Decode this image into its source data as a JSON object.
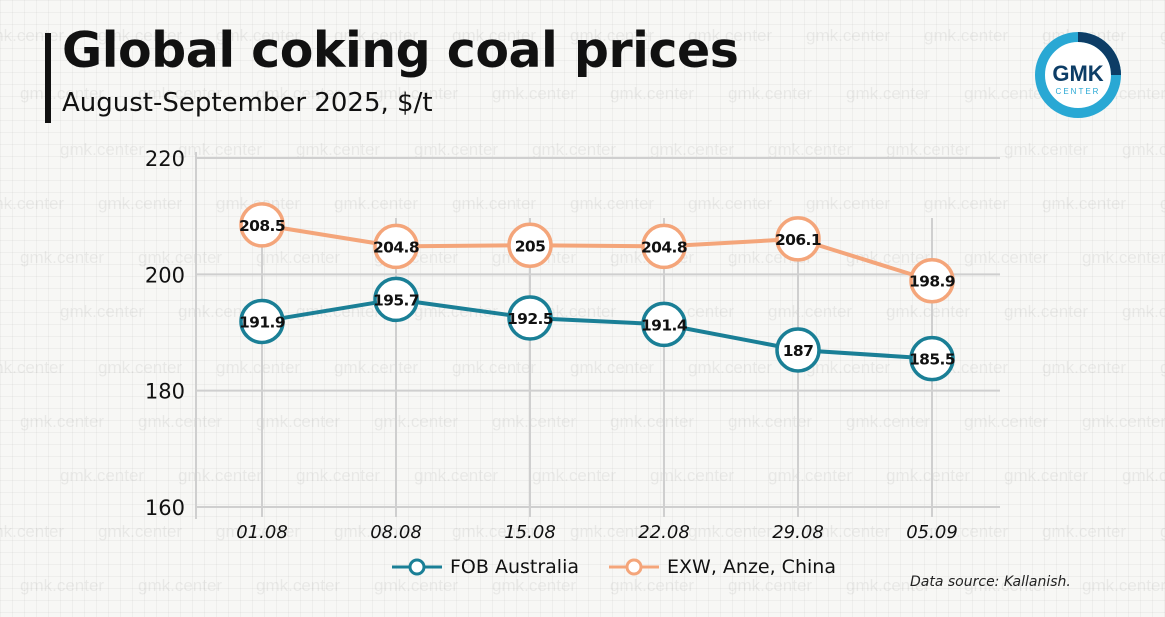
{
  "header": {
    "title": "Global coking coal prices",
    "subtitle": "August-September 2025, $/t"
  },
  "logo": {
    "line1": "GMK",
    "line2": "CENTER",
    "ring_color": "#29a8d4",
    "accent_color": "#0d3d66"
  },
  "watermark_text": "gmk.center",
  "source": "Data source: Kallanish.",
  "colors": {
    "fob": "#1a7f96",
    "exw": "#f4a57a",
    "grid": "#cfcfcf"
  },
  "chart_data": {
    "type": "line",
    "title": "Global coking coal prices",
    "subtitle": "August-September 2025, $/t",
    "xlabel": "",
    "ylabel": "$/t",
    "categories": [
      "01.08",
      "08.08",
      "15.08",
      "22.08",
      "29.08",
      "05.09"
    ],
    "ylim": [
      160,
      220
    ],
    "yticks": [
      160,
      180,
      200,
      220
    ],
    "grid": true,
    "legend_position": "bottom",
    "series": [
      {
        "name": "FOB Australia",
        "color": "#1a7f96",
        "values": [
          191.9,
          195.7,
          192.5,
          191.4,
          187,
          185.5
        ],
        "labels": [
          "191.9",
          "195.7",
          "192.5",
          "191.4",
          "187",
          "185.5"
        ]
      },
      {
        "name": "EXW, Anze, China",
        "color": "#f4a57a",
        "values": [
          208.5,
          204.8,
          205,
          204.8,
          206.1,
          198.9
        ],
        "labels": [
          "208.5",
          "204.8",
          "205",
          "204.8",
          "206.1",
          "198.9"
        ]
      }
    ]
  }
}
